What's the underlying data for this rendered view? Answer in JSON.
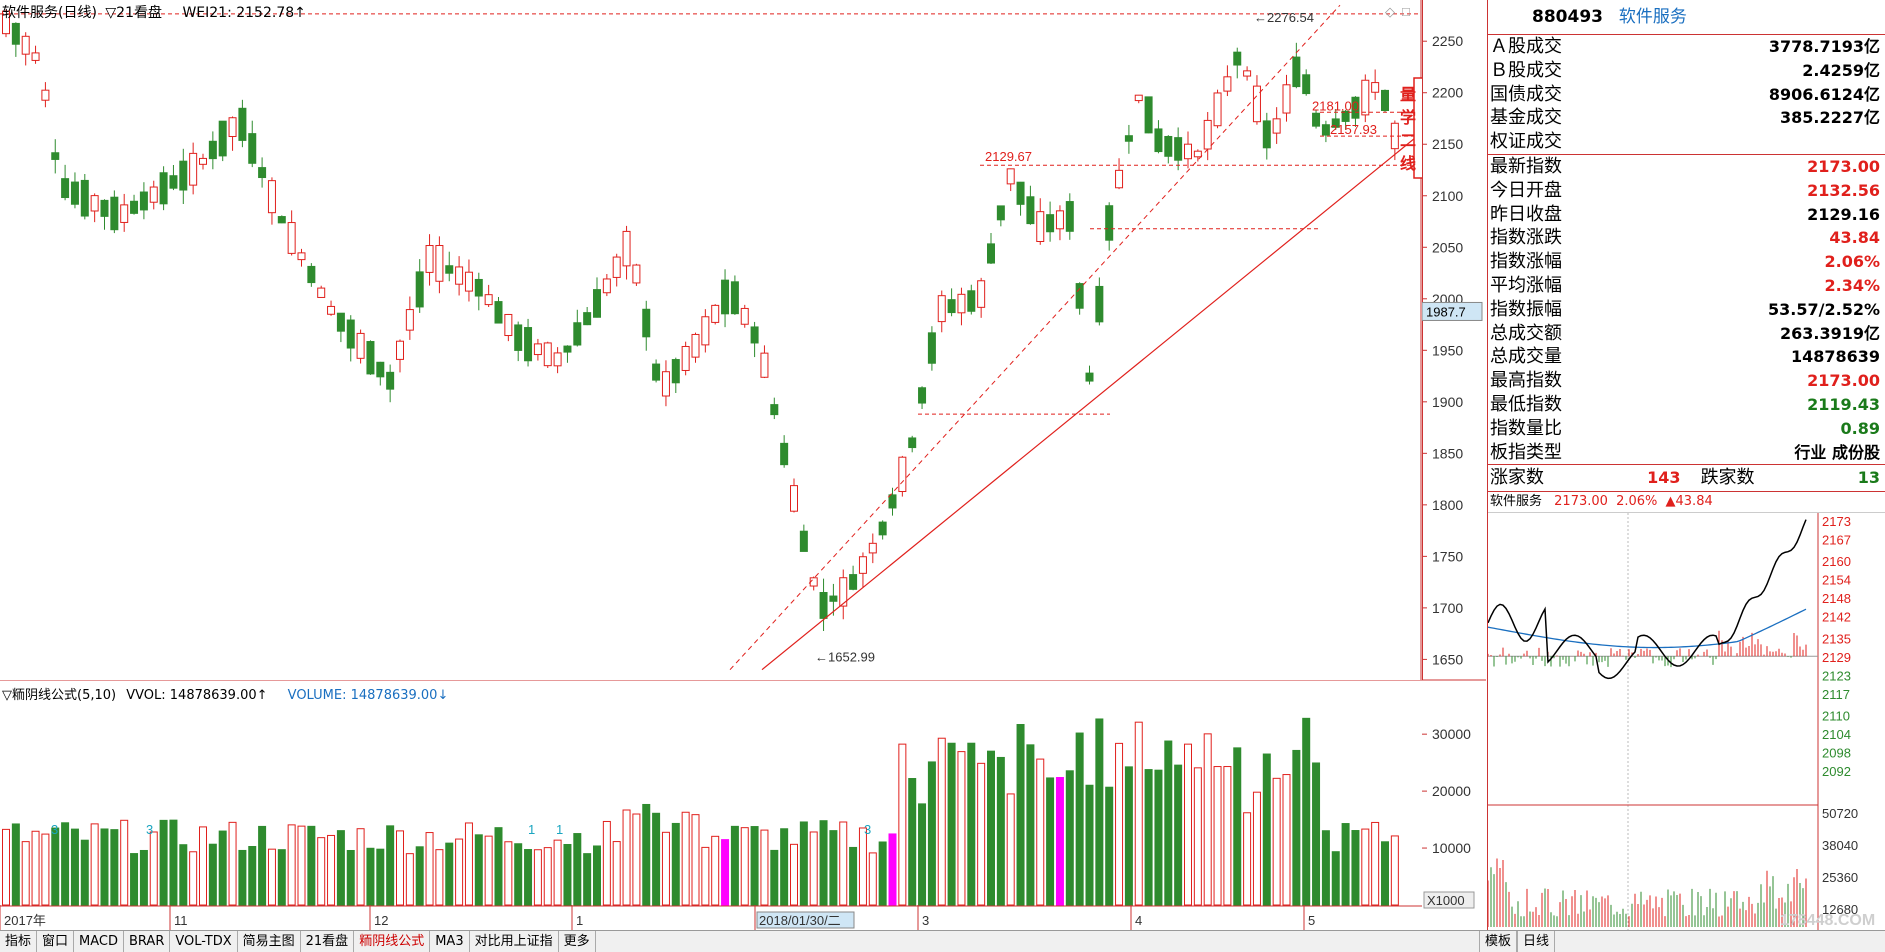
{
  "header": {
    "title": "软件服务(日线)",
    "indicator": "▽21看盘",
    "wei_label": "WEI21: 2152.78↑"
  },
  "vol_header": {
    "formula": "▽粫阴线公式(5,10)",
    "vvol": "VVOL: 14878639.00↑",
    "volume": "VOLUME: 14878639.00↓"
  },
  "price_axis": {
    "ticks": [
      "2250",
      "2200",
      "2150",
      "2100",
      "2050",
      "2000",
      "1950",
      "1900",
      "1850",
      "1800",
      "1750",
      "1700",
      "1650"
    ],
    "current_price_tag": "1987.7"
  },
  "vol_axis": {
    "ticks": [
      "30000",
      "20000",
      "10000"
    ],
    "unit": "X1000"
  },
  "time_axis": {
    "labels": [
      "2017年",
      "11",
      "12",
      "1",
      "2018/01/30/二",
      "3",
      "4",
      "5"
    ]
  },
  "annotations": {
    "high": "2276.54",
    "low": "1652.99",
    "level1": "2181.00",
    "level2": "2157.93",
    "level3": "2129.67",
    "vol_marks": [
      "3",
      "3",
      "1",
      "1",
      "3"
    ],
    "badge": "量学二线"
  },
  "bottom_tabs": [
    "指标",
    "窗口",
    "MACD",
    "BRAR",
    "VOL-TDX",
    "简易主图",
    "21看盘",
    "粫阴线公式",
    "MA3",
    "对比用上证指",
    "更多"
  ],
  "bottom_right_tabs": [
    "模板",
    "日线"
  ],
  "watermark": "178448.COM",
  "panel": {
    "code": "880493",
    "name": "软件服务",
    "rows_top": [
      {
        "label": "Ａ股成交",
        "value": "3778.7193亿",
        "color": "black"
      },
      {
        "label": "Ｂ股成交",
        "value": "2.4259亿",
        "color": "black"
      },
      {
        "label": "国债成交",
        "value": "8906.6124亿",
        "color": "black"
      },
      {
        "label": "基金成交",
        "value": "385.2227亿",
        "color": "black"
      },
      {
        "label": "权证成交",
        "value": "",
        "color": "black"
      }
    ],
    "rows_main": [
      {
        "label": "最新指数",
        "value": "2173.00",
        "color": "red"
      },
      {
        "label": "今日开盘",
        "value": "2132.56",
        "color": "red"
      },
      {
        "label": "昨日收盘",
        "value": "2129.16",
        "color": "black"
      },
      {
        "label": "指数涨跌",
        "value": "43.84",
        "color": "red"
      },
      {
        "label": "指数涨幅",
        "value": "2.06%",
        "color": "red"
      },
      {
        "label": "平均涨幅",
        "value": "2.34%",
        "color": "red"
      },
      {
        "label": "指数振幅",
        "value": "53.57/2.52%",
        "color": "black"
      },
      {
        "label": "总成交额",
        "value": "263.3919亿",
        "color": "black"
      },
      {
        "label": "总成交量",
        "value": "14878639",
        "color": "black"
      },
      {
        "label": "最高指数",
        "value": "2173.00",
        "color": "red"
      },
      {
        "label": "最低指数",
        "value": "2119.43",
        "color": "green"
      },
      {
        "label": "指数量比",
        "value": "0.89",
        "color": "green"
      },
      {
        "label": "板指类型",
        "value": "行业 成份股",
        "color": "black"
      }
    ],
    "up_label": "涨家数",
    "up_value": "143",
    "down_label": "跌家数",
    "down_value": "13",
    "mini": {
      "name": "软件服务",
      "price": "2173.00",
      "pct": "2.06%",
      "chg": "▲43.84",
      "price_ticks": [
        "2173",
        "2167",
        "2160",
        "2154",
        "2148",
        "2142",
        "2135",
        "2129",
        "2123",
        "2117",
        "2110",
        "2104",
        "2098",
        "2092"
      ],
      "vol_ticks": [
        "50720",
        "38040",
        "25360",
        "12680"
      ]
    }
  },
  "chart_data": {
    "type": "candlestick",
    "x": [
      "2017-10",
      "2017-11",
      "2017-12",
      "2018-01",
      "2018-01-30",
      "2018-03",
      "2018-04",
      "2018-05"
    ],
    "ylim": [
      1630,
      2290
    ],
    "annotated_levels": [
      2276.54,
      2181.0,
      2157.93,
      2129.67,
      1652.99
    ],
    "current": 2173.0
  }
}
